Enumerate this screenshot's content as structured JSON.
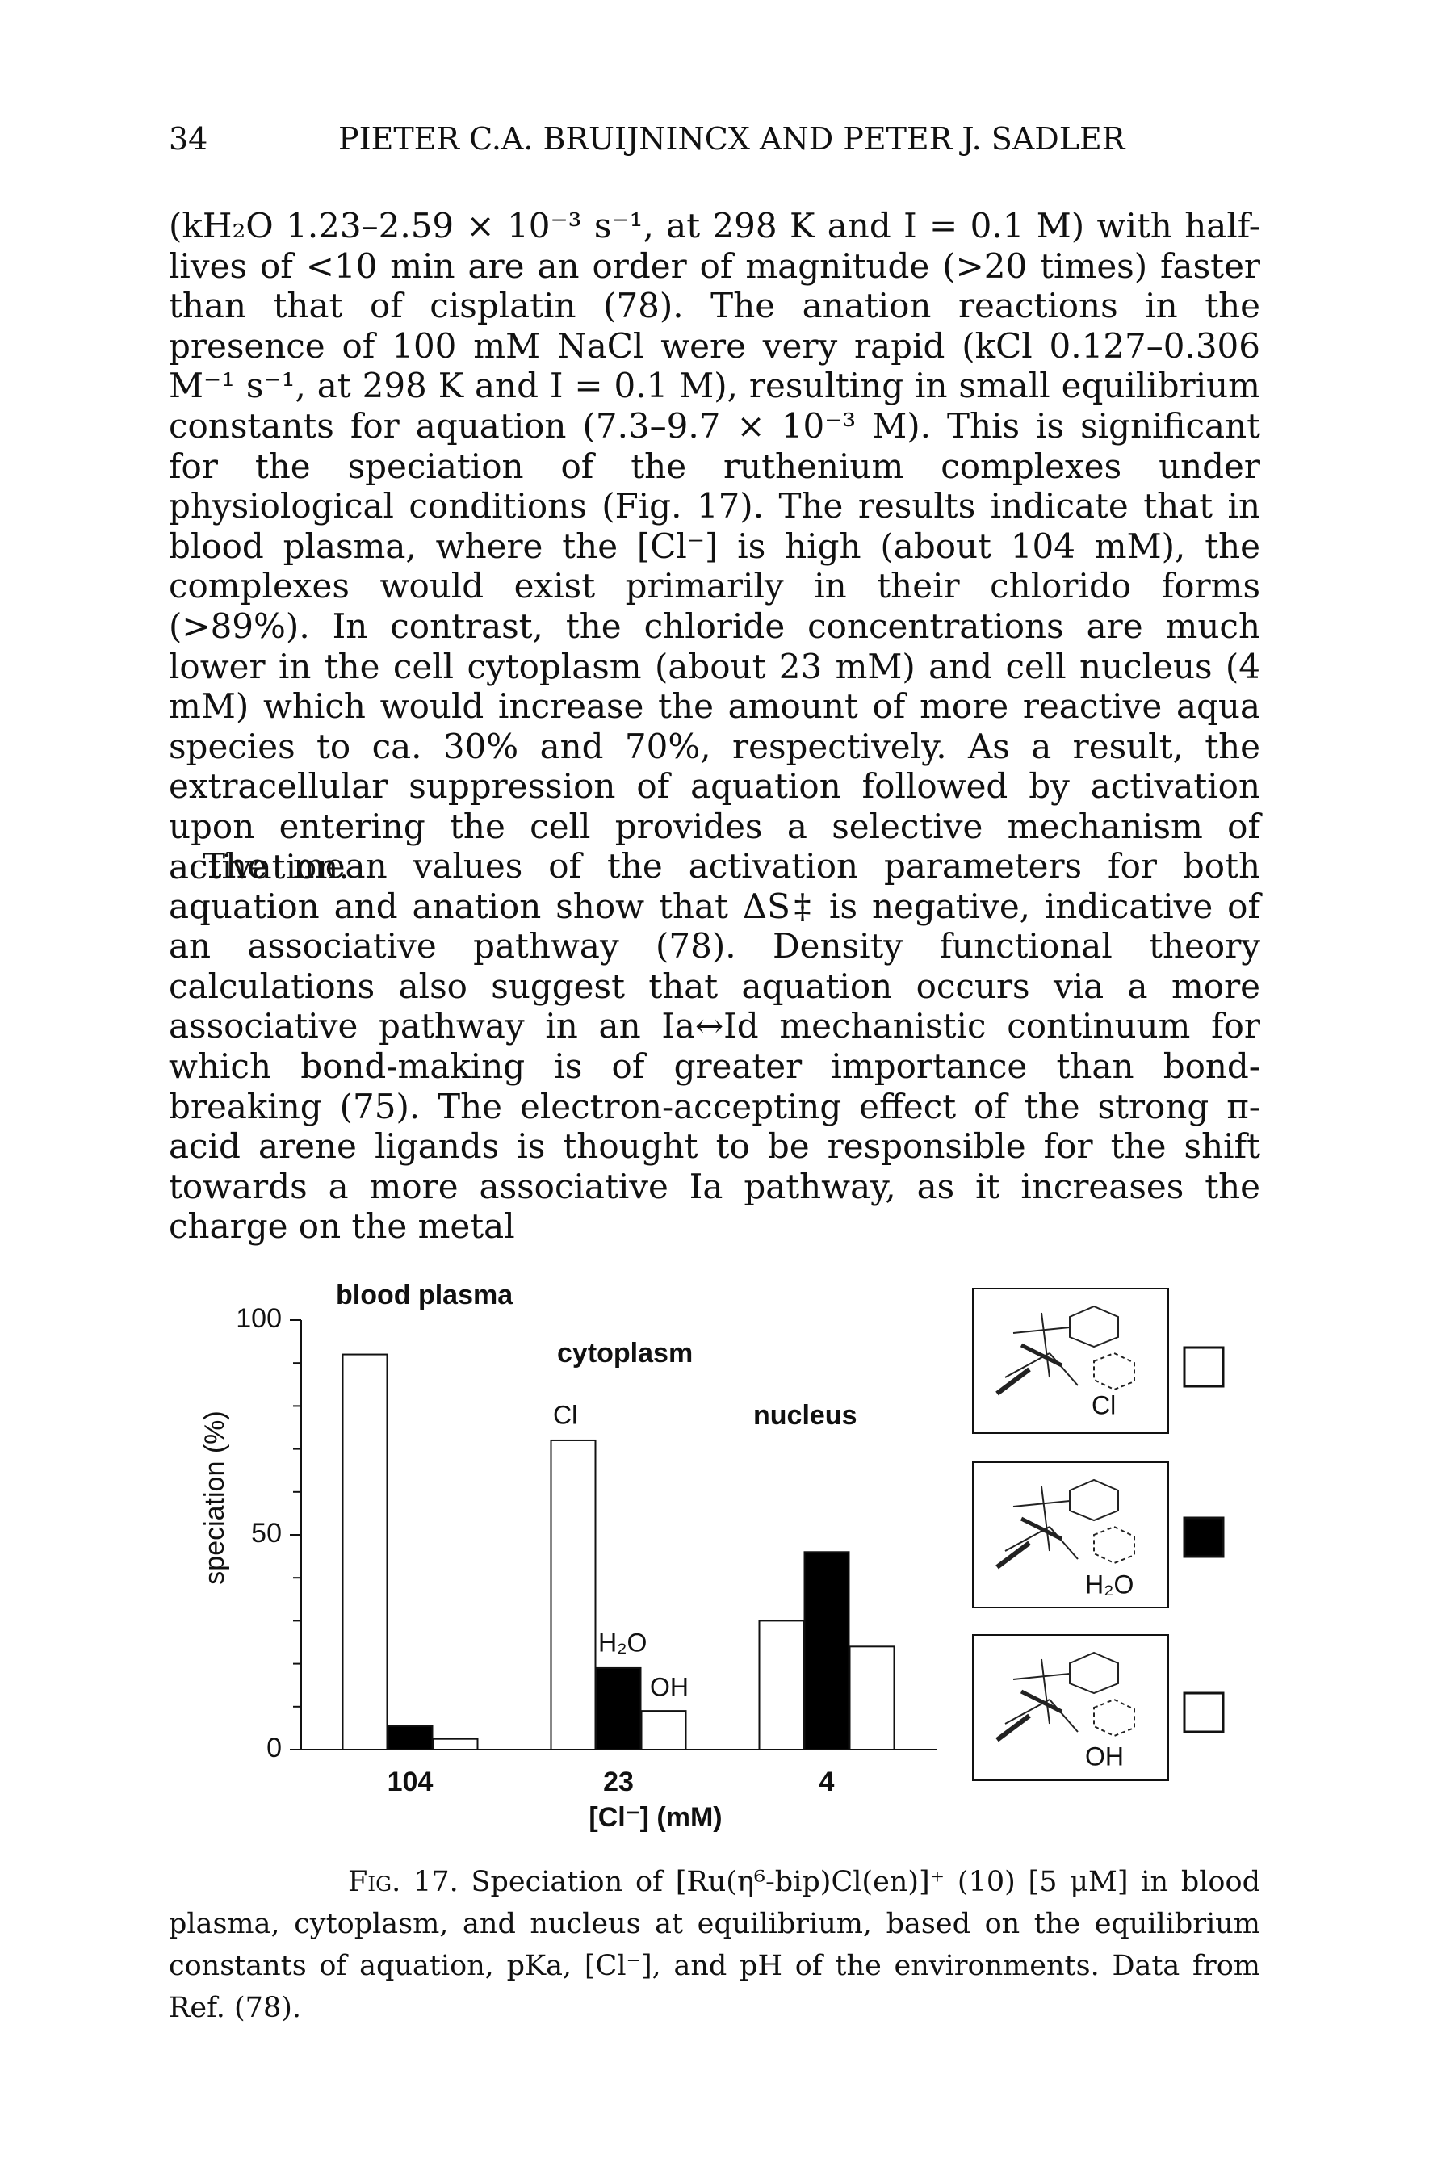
{
  "header": {
    "page_number": "34",
    "running_head": "PIETER C.A. BRUIJNINCX AND PETER J. SADLER"
  },
  "paragraphs": [
    "(kH₂O 1.23–2.59 × 10⁻³ s⁻¹, at 298 K and I = 0.1 M) with half-lives of <10 min are an order of magnitude (>20 times) faster than that of cisplatin (78). The anation reactions in the presence of 100 mM NaCl were very rapid (kCl 0.127–0.306 M⁻¹ s⁻¹, at 298 K and I = 0.1 M), resulting in small equilibrium constants for aquation (7.3–9.7 × 10⁻³ M). This is significant for the speciation of the ruthenium complexes under physiological conditions (Fig. 17). The results indicate that in blood plasma, where the [Cl⁻] is high (about 104 mM), the complexes would exist primarily in their chlorido forms (>89%). In contrast, the chloride concentrations are much lower in the cell cytoplasm (about 23 mM) and cell nucleus (4 mM) which would increase the amount of more reactive aqua species to ca. 30% and 70%, respectively. As a result, the extracellular suppression of aquation followed by activation upon entering the cell provides a selective mechanism of activation.",
    "The mean values of the activation parameters for both aquation and anation show that ΔS‡ is negative, indicative of an associative pathway (78). Density functional theory calculations also suggest that aquation occurs via a more associative pathway in an Ia↔Id mechanistic continuum for which bond-making is of greater importance than bond-breaking (75). The electron-accepting effect of the strong π-acid arene ligands is thought to be responsible for the shift towards a more associative Ia pathway, as it increases the charge on the metal"
  ],
  "chart_data": {
    "type": "bar",
    "ylabel": "speciation (%)",
    "xlabel": "[Cl⁻] (mM)",
    "categories": [
      "104",
      "23",
      "4"
    ],
    "series": [
      {
        "name": "Cl",
        "color": "#ffffff",
        "values": [
          92,
          72,
          30
        ]
      },
      {
        "name": "H₂O",
        "color": "#000000",
        "values": [
          5.5,
          19,
          46
        ]
      },
      {
        "name": "OH",
        "color": "#ffffff",
        "values": [
          2.5,
          9,
          24
        ]
      }
    ],
    "ylim": [
      0,
      100
    ],
    "yticks": [
      0,
      50,
      100
    ],
    "minor_yticks": [
      10,
      20,
      30,
      40,
      60,
      70,
      80,
      90
    ],
    "annotations": [
      "blood plasma",
      "cytoplasm",
      "nucleus",
      "Cl",
      "H₂O",
      "OH"
    ]
  },
  "caption": {
    "label": "Fig. 17.",
    "text": "Speciation of [Ru(η⁶-bip)Cl(en)]⁺ (10) [5 μM] in blood plasma, cytoplasm, and nucleus at equilibrium, based on the equilibrium constants of aquation, pKa, [Cl⁻], and pH of the environments. Data from Ref. (78)."
  }
}
